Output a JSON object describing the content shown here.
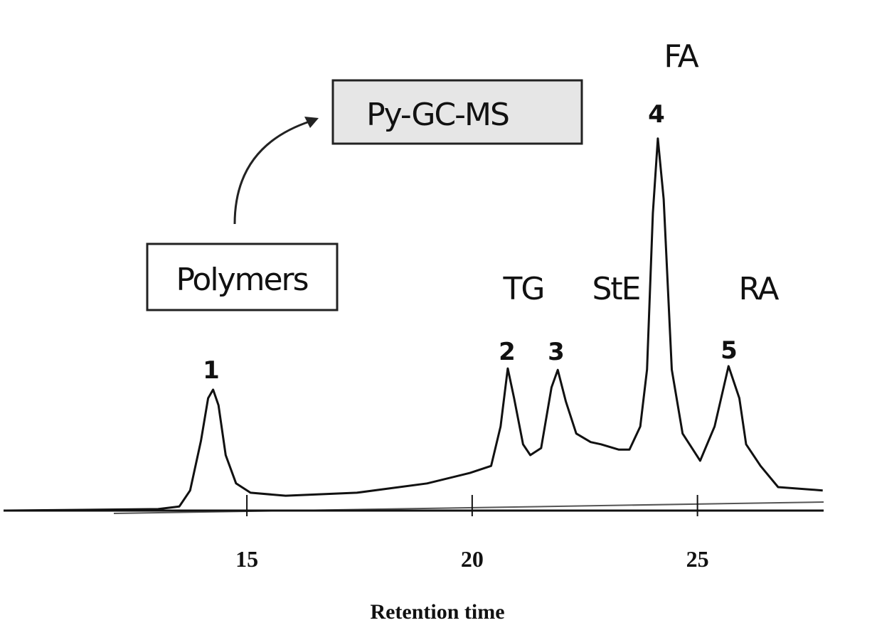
{
  "chart_data": {
    "type": "line",
    "x_label": "Retention time",
    "x": [
      9.65,
      13.03,
      13.5,
      13.74,
      13.98,
      14.14,
      14.25,
      14.37,
      14.53,
      14.76,
      15.08,
      15.86,
      17.44,
      19.0,
      19.95,
      20.42,
      20.63,
      20.79,
      20.93,
      21.13,
      21.29,
      21.53,
      21.76,
      21.9,
      22.08,
      22.31,
      22.63,
      22.86,
      23.25,
      23.49,
      23.73,
      23.88,
      24.01,
      24.12,
      24.25,
      24.43,
      24.67,
      25.06,
      25.38,
      25.69,
      25.93,
      26.08,
      26.4,
      26.79,
      27.78
    ],
    "values": [
      0,
      0.4,
      1.1,
      5.4,
      18.7,
      30.2,
      32.5,
      28.3,
      14.9,
      7.3,
      4.8,
      4.0,
      4.8,
      7.3,
      10.1,
      12.0,
      22.6,
      38.2,
      30.2,
      17.8,
      14.9,
      16.8,
      33.1,
      37.8,
      29.3,
      20.7,
      18.4,
      17.8,
      16.4,
      16.4,
      22.6,
      37.9,
      79.9,
      100,
      83.7,
      37.9,
      20.7,
      13.4,
      22.6,
      38.8,
      30.2,
      17.8,
      12.0,
      6.3,
      5.4
    ],
    "color": "#111111",
    "xlim": [
      9.6,
      27.8
    ],
    "xticks": [
      15,
      20,
      25
    ],
    "ylim": [
      0,
      120
    ],
    "annotations": [
      "Polymers",
      "Py-GC-MS",
      "TG",
      "StE",
      "FA",
      "RA",
      "1",
      "2",
      "3",
      "4",
      "5"
    ]
  }
}
